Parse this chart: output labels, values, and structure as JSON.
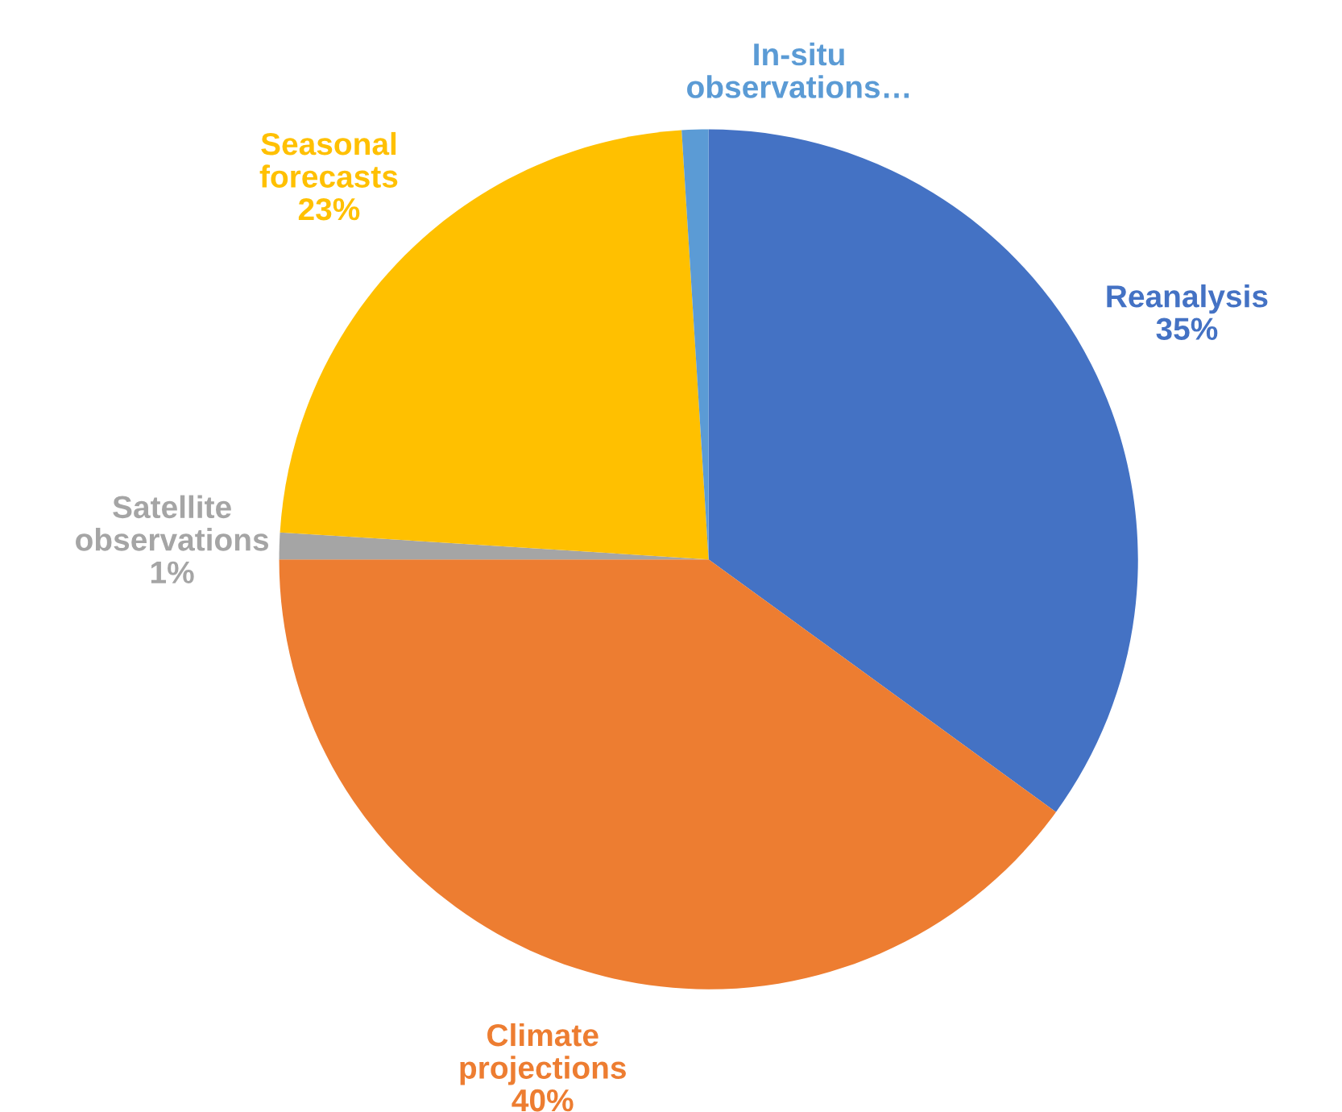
{
  "chart_data": {
    "type": "pie",
    "categories": [
      "Reanalysis",
      "Climate projections",
      "Satellite observations",
      "Seasonal forecasts",
      "In-situ observations…"
    ],
    "values": [
      35,
      40,
      1,
      23,
      1
    ],
    "colors": [
      "#4472c4",
      "#ed7d31",
      "#a5a5a5",
      "#ffc000",
      "#5b9bd5"
    ],
    "value_labels": [
      "35%",
      "40%",
      "1%",
      "23%",
      null
    ],
    "legend": false
  }
}
